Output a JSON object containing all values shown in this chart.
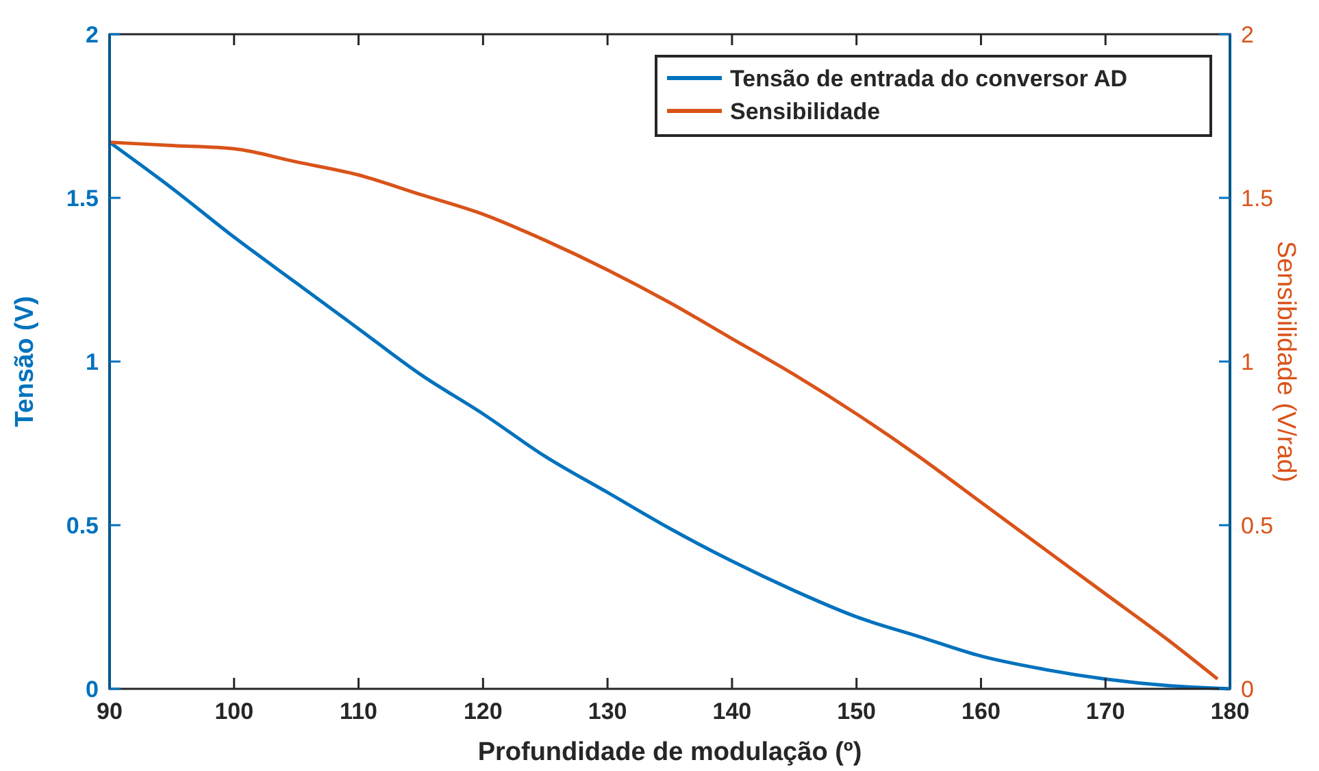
{
  "chart_data": {
    "type": "line",
    "xlabel": "Profundidade de modulação (º)",
    "ylabel": "Tensão (V)",
    "y2label": "Sensibilidade (V/rad)",
    "xlim": [
      90,
      180
    ],
    "xticks": [
      90,
      100,
      110,
      120,
      130,
      140,
      150,
      160,
      170,
      180
    ],
    "ylim": [
      0,
      2
    ],
    "yticks": [
      0,
      0.5,
      1,
      1.5,
      2
    ],
    "y2lim": [
      0,
      2
    ],
    "y2ticks": [
      0,
      0.5,
      1,
      1.5,
      2
    ],
    "grid": false,
    "legend": "top right",
    "line_style": "solid",
    "marker": "none",
    "series": [
      {
        "name": "Tensão de entrada do conversor AD",
        "color": "#0072bd",
        "x": [
          90,
          95,
          100,
          105,
          110,
          115,
          120,
          125,
          130,
          135,
          140,
          145,
          150,
          155,
          160,
          165,
          170,
          175,
          180
        ],
        "values": [
          1.67,
          1.53,
          1.38,
          1.24,
          1.1,
          0.96,
          0.84,
          0.71,
          0.6,
          0.49,
          0.39,
          0.3,
          0.22,
          0.16,
          0.1,
          0.06,
          0.03,
          0.01,
          0
        ]
      },
      {
        "name": "Sensibilidade",
        "color": "#d95319",
        "axis": "y2",
        "x": [
          90,
          95,
          100,
          105,
          110,
          115,
          120,
          125,
          130,
          135,
          140,
          145,
          150,
          155,
          160,
          165,
          170,
          175,
          179
        ],
        "values": [
          1.67,
          1.66,
          1.65,
          1.61,
          1.57,
          1.51,
          1.45,
          1.37,
          1.28,
          1.18,
          1.07,
          0.96,
          0.84,
          0.71,
          0.57,
          0.43,
          0.29,
          0.15,
          0.03
        ]
      }
    ]
  }
}
